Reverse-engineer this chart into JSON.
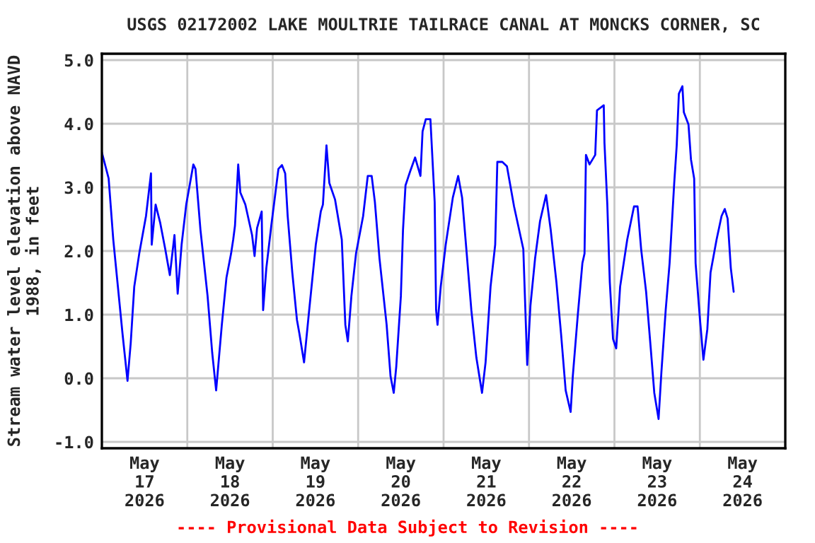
{
  "chart_data": {
    "type": "line",
    "title": "USGS 02172002 LAKE MOULTRIE TAILRACE CANAL AT MONCKS CORNER, SC",
    "ylabel": "Stream water level elevation above NAVD\n1988, in feet",
    "annotations": [
      "---- Provisional Data Subject to Revision ----"
    ],
    "series": [
      {
        "color": "#0000ff",
        "x": [
          "2026-05-17T00:00",
          "2026-05-17T01:54",
          "2026-05-17T03:12",
          "2026-05-17T04:30",
          "2026-05-17T05:48",
          "2026-05-17T07:12",
          "2026-05-17T08:06",
          "2026-05-17T09:06",
          "2026-05-17T10:30",
          "2026-05-17T12:24",
          "2026-05-17T13:48",
          "2026-05-17T14:00",
          "2026-05-17T15:06",
          "2026-05-17T16:24",
          "2026-05-17T17:48",
          "2026-05-17T19:06",
          "2026-05-17T20:24",
          "2026-05-17T21:18",
          "2026-05-17T22:24",
          "2026-05-17T23:42",
          "2026-05-18T01:42",
          "2026-05-18T02:18",
          "2026-05-18T03:42",
          "2026-05-18T05:42",
          "2026-05-18T07:00",
          "2026-05-18T08:06",
          "2026-05-18T09:42",
          "2026-05-18T11:00",
          "2026-05-18T12:18",
          "2026-05-18T12:54",
          "2026-05-18T13:24",
          "2026-05-18T14:18",
          "2026-05-18T14:54",
          "2026-05-18T16:18",
          "2026-05-18T18:12",
          "2026-05-18T18:54",
          "2026-05-18T19:36",
          "2026-05-18T20:54",
          "2026-05-18T21:18",
          "2026-05-18T22:12",
          "2026-05-18T23:36",
          "2026-05-19T01:36",
          "2026-05-19T02:36",
          "2026-05-19T03:30",
          "2026-05-19T04:12",
          "2026-05-19T05:30",
          "2026-05-19T06:48",
          "2026-05-19T07:30",
          "2026-05-19T08:48",
          "2026-05-19T10:06",
          "2026-05-19T12:06",
          "2026-05-19T13:30",
          "2026-05-19T14:06",
          "2026-05-19T15:06",
          "2026-05-19T15:54",
          "2026-05-19T17:30",
          "2026-05-19T19:24",
          "2026-05-19T20:24",
          "2026-05-19T21:06",
          "2026-05-19T22:06",
          "2026-05-19T23:24",
          "2026-05-20T01:24",
          "2026-05-20T02:42",
          "2026-05-20T03:48",
          "2026-05-20T04:42",
          "2026-05-20T06:00",
          "2026-05-20T08:00",
          "2026-05-20T09:06",
          "2026-05-20T10:00",
          "2026-05-20T10:42",
          "2026-05-20T12:00",
          "2026-05-20T12:36",
          "2026-05-20T13:18",
          "2026-05-20T14:36",
          "2026-05-20T16:00",
          "2026-05-20T17:30",
          "2026-05-20T18:06",
          "2026-05-20T19:00",
          "2026-05-20T20:18",
          "2026-05-20T21:30",
          "2026-05-20T21:54",
          "2026-05-20T22:18",
          "2026-05-20T23:12",
          "2026-05-21T00:36",
          "2026-05-21T02:36",
          "2026-05-21T04:06",
          "2026-05-21T05:12",
          "2026-05-21T06:30",
          "2026-05-21T07:48",
          "2026-05-21T09:12",
          "2026-05-21T10:48",
          "2026-05-21T11:48",
          "2026-05-21T13:12",
          "2026-05-21T14:30",
          "2026-05-21T15:06",
          "2026-05-21T16:30",
          "2026-05-21T17:48",
          "2026-05-21T19:48",
          "2026-05-21T22:24",
          "2026-05-21T23:30",
          "2026-05-22T00:24",
          "2026-05-22T01:42",
          "2026-05-22T03:06",
          "2026-05-22T04:48",
          "2026-05-22T06:06",
          "2026-05-22T07:42",
          "2026-05-22T09:00",
          "2026-05-22T10:18",
          "2026-05-22T11:42",
          "2026-05-22T12:18",
          "2026-05-22T13:42",
          "2026-05-22T15:00",
          "2026-05-22T15:36",
          "2026-05-22T16:00",
          "2026-05-22T17:00",
          "2026-05-22T18:36",
          "2026-05-22T19:06",
          "2026-05-22T21:00",
          "2026-05-22T21:12",
          "2026-05-22T22:00",
          "2026-05-22T22:42",
          "2026-05-22T23:36",
          "2026-05-23T00:30",
          "2026-05-23T01:36",
          "2026-05-23T03:36",
          "2026-05-23T05:30",
          "2026-05-23T06:30",
          "2026-05-23T07:30",
          "2026-05-23T08:54",
          "2026-05-23T10:12",
          "2026-05-23T11:12",
          "2026-05-23T12:24",
          "2026-05-23T13:12",
          "2026-05-23T14:24",
          "2026-05-23T15:30",
          "2026-05-23T16:48",
          "2026-05-23T17:30",
          "2026-05-23T18:06",
          "2026-05-23T19:06",
          "2026-05-23T19:30",
          "2026-05-23T20:48",
          "2026-05-23T21:30",
          "2026-05-23T22:24",
          "2026-05-23T22:48",
          "2026-05-24T00:06",
          "2026-05-24T01:00",
          "2026-05-24T02:06",
          "2026-05-24T03:00",
          "2026-05-24T04:42",
          "2026-05-24T06:06",
          "2026-05-24T07:00",
          "2026-05-24T07:48",
          "2026-05-24T08:42",
          "2026-05-24T09:30"
        ],
        "values": [
          3.55,
          3.14,
          2.18,
          1.44,
          0.7,
          -0.04,
          0.55,
          1.44,
          1.96,
          2.55,
          3.22,
          2.1,
          2.73,
          2.44,
          2.03,
          1.62,
          2.25,
          1.33,
          2.1,
          2.73,
          3.36,
          3.29,
          2.33,
          1.29,
          0.4,
          -0.19,
          0.84,
          1.58,
          1.96,
          2.18,
          2.4,
          3.36,
          2.92,
          2.73,
          2.25,
          1.92,
          2.36,
          2.62,
          1.07,
          1.73,
          2.4,
          3.29,
          3.35,
          3.22,
          2.55,
          1.66,
          0.92,
          0.7,
          0.25,
          0.99,
          2.1,
          2.62,
          2.73,
          3.66,
          3.07,
          2.81,
          2.18,
          0.84,
          0.58,
          1.29,
          1.96,
          2.55,
          3.18,
          3.18,
          2.77,
          1.88,
          0.84,
          0.03,
          -0.23,
          0.18,
          1.29,
          2.33,
          3.03,
          3.25,
          3.47,
          3.18,
          3.88,
          4.07,
          4.07,
          2.77,
          1.07,
          0.84,
          1.44,
          2.1,
          2.84,
          3.18,
          2.84,
          1.96,
          1.07,
          0.33,
          -0.23,
          0.25,
          1.44,
          2.1,
          3.4,
          3.4,
          3.33,
          2.7,
          2.03,
          0.21,
          1.14,
          1.88,
          2.47,
          2.88,
          2.33,
          1.51,
          0.7,
          -0.19,
          -0.53,
          0.03,
          0.99,
          1.81,
          1.96,
          3.51,
          3.36,
          3.51,
          4.21,
          4.29,
          3.7,
          2.73,
          1.51,
          0.62,
          0.47,
          1.44,
          2.18,
          2.7,
          2.7,
          2.03,
          1.36,
          0.47,
          -0.23,
          -0.64,
          0.1,
          1.07,
          1.81,
          3.07,
          3.66,
          4.47,
          4.59,
          4.18,
          3.99,
          3.44,
          3.14,
          1.81,
          0.88,
          0.29,
          0.77,
          1.66,
          2.18,
          2.55,
          2.66,
          2.51,
          1.73,
          1.36
        ]
      }
    ],
    "xlim": [
      "2026-05-17T00:00",
      "2026-05-25T00:00"
    ],
    "xticks": [
      {
        "value": "2026-05-17T12:00",
        "label": "May\n17\n2026"
      },
      {
        "value": "2026-05-18T00:00",
        "label": null
      },
      {
        "value": "2026-05-18T12:00",
        "label": "May\n18\n2026"
      },
      {
        "value": "2026-05-19T00:00",
        "label": null
      },
      {
        "value": "2026-05-19T12:00",
        "label": "May\n19\n2026"
      },
      {
        "value": "2026-05-20T00:00",
        "label": null
      },
      {
        "value": "2026-05-20T12:00",
        "label": "May\n20\n2026"
      },
      {
        "value": "2026-05-21T00:00",
        "label": null
      },
      {
        "value": "2026-05-21T12:00",
        "label": "May\n21\n2026"
      },
      {
        "value": "2026-05-22T00:00",
        "label": null
      },
      {
        "value": "2026-05-22T12:00",
        "label": "May\n22\n2026"
      },
      {
        "value": "2026-05-23T00:00",
        "label": null
      },
      {
        "value": "2026-05-23T12:00",
        "label": "May\n23\n2026"
      },
      {
        "value": "2026-05-24T00:00",
        "label": null
      },
      {
        "value": "2026-05-24T12:00",
        "label": "May\n24\n2026"
      }
    ],
    "ylim": [
      -1.1,
      5.1
    ],
    "yticks": [
      {
        "value": -1,
        "label": "-1.0"
      },
      {
        "value": 0,
        "label": "0.0"
      },
      {
        "value": 1,
        "label": "1.0"
      },
      {
        "value": 2,
        "label": "2.0"
      },
      {
        "value": 3,
        "label": "3.0"
      },
      {
        "value": 4,
        "label": "4.0"
      },
      {
        "value": 5,
        "label": "5.0"
      }
    ],
    "grid": true,
    "marker": "none",
    "line_style": "solid"
  }
}
